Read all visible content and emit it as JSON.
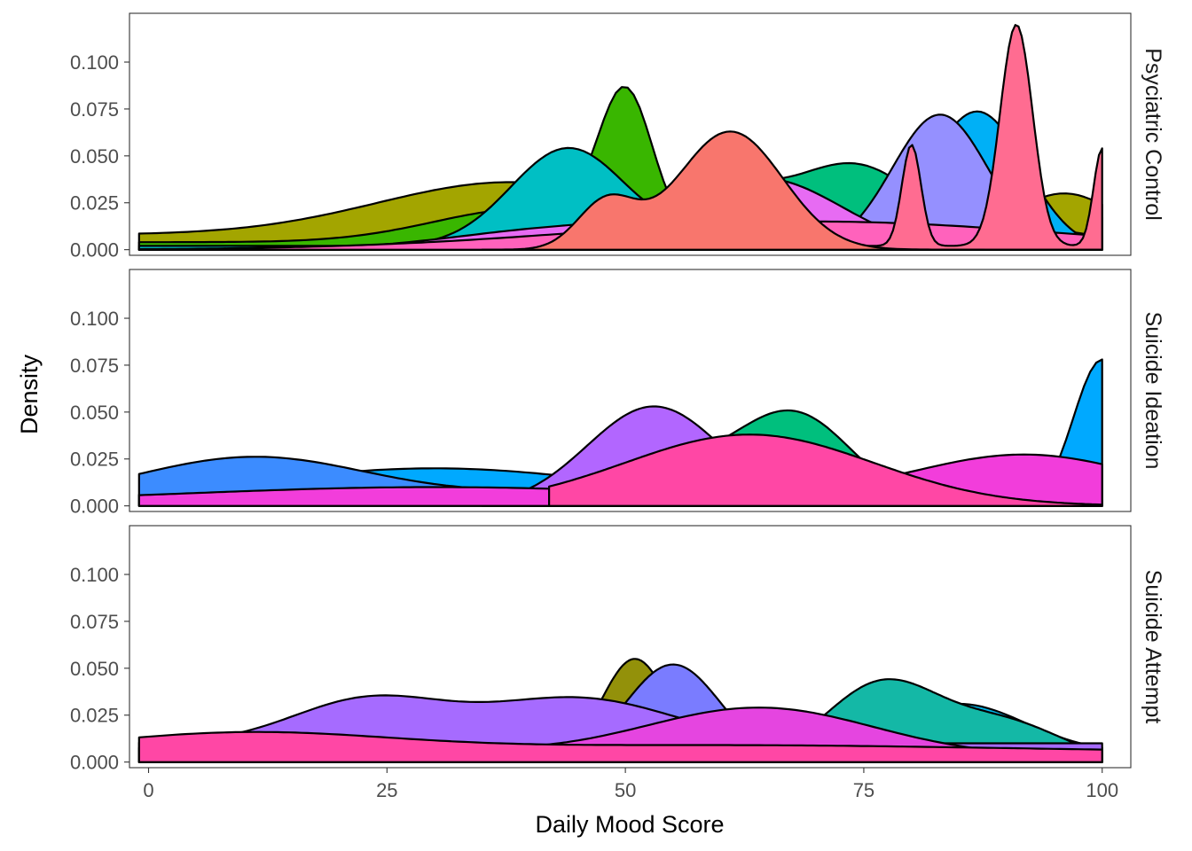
{
  "chart_data": {
    "type": "area",
    "xlabel": "Daily Mood Score",
    "ylabel": "Density",
    "xlim": [
      -2,
      103
    ],
    "ylim": [
      -0.003,
      0.126
    ],
    "x_ticks": [
      0,
      25,
      50,
      75,
      100
    ],
    "x_tick_labels": [
      "0",
      "25",
      "50",
      "75",
      "100"
    ],
    "y_ticks": [
      0,
      0.025,
      0.05,
      0.075,
      0.1
    ],
    "y_tick_labels": [
      "0.000",
      "0.025",
      "0.050",
      "0.075",
      "0.100"
    ],
    "grid": false,
    "legend": "none",
    "facets": [
      {
        "label": "Psyciatric Control",
        "series": [
          {
            "color": "#F8766D",
            "x_range": [
              0,
              100
            ],
            "peaks": [
              [
                62,
                0.03,
                12
              ],
              [
                95,
                0.028,
                5
              ]
            ],
            "base": 0.0
          },
          {
            "color": "#A3A500",
            "x_range": [
              -1,
              100
            ],
            "peaks": [
              [
                38,
                0.028,
                14
              ],
              [
                96,
                0.022,
                5
              ]
            ],
            "base": 0.008
          },
          {
            "color": "#39B600",
            "x_range": [
              -1,
              99
            ],
            "peaks": [
              [
                50,
                0.072,
                2.8
              ],
              [
                40,
                0.018,
                10
              ],
              [
                95,
                0.006,
                4
              ]
            ],
            "base": 0.004
          },
          {
            "color": "#00BF7D",
            "x_range": [
              -1,
              100
            ],
            "peaks": [
              [
                74,
                0.045,
                7
              ],
              [
                58,
                0.035,
                6
              ]
            ],
            "base": 0.0
          },
          {
            "color": "#00BFC4",
            "x_range": [
              -1,
              90
            ],
            "peaks": [
              [
                44,
                0.052,
                6
              ],
              [
                68,
                0.02,
                8
              ]
            ],
            "base": 0.002
          },
          {
            "color": "#00B0F6",
            "x_range": [
              40,
              100
            ],
            "peaks": [
              [
                87,
                0.072,
                5
              ],
              [
                66,
                0.015,
                10
              ]
            ],
            "base": 0.0
          },
          {
            "color": "#9590FF",
            "x_range": [
              60,
              98
            ],
            "peaks": [
              [
                83,
                0.072,
                5
              ]
            ],
            "base": 0.0
          },
          {
            "color": "#E76BF3",
            "x_range": [
              15,
              100
            ],
            "peaks": [
              [
                65,
                0.035,
                8
              ],
              [
                45,
                0.012,
                12
              ]
            ],
            "base": 0.0
          },
          {
            "color": "#FF62BC",
            "x_range": [
              -1,
              100
            ],
            "peaks": [
              [
                70,
                0.015,
                25
              ]
            ],
            "base": 0.0
          },
          {
            "color": "#FF6C91",
            "x_range": [
              46,
              100
            ],
            "peaks": [
              [
                91,
                0.118,
                1.7
              ],
              [
                80,
                0.054,
                1
              ],
              [
                100,
                0.052,
                0.9
              ],
              [
                50,
                0.012,
                4
              ]
            ],
            "base": 0.002
          },
          {
            "color": "#F8766D",
            "x_range": [
              35,
              100
            ],
            "peaks": [
              [
                61,
                0.063,
                5.5
              ],
              [
                48,
                0.025,
                3
              ]
            ],
            "base": 0.0
          }
        ]
      },
      {
        "label": "Suicide Ideation",
        "series": [
          {
            "color": "#00BF7D",
            "x_range": [
              40,
              100
            ],
            "peaks": [
              [
                68,
                0.045,
                6
              ],
              [
                55,
                0.02,
                8
              ]
            ],
            "base": 0.0
          },
          {
            "color": "#00A9FF",
            "x_range": [
              -1,
              100
            ],
            "peaks": [
              [
                100,
                0.078,
                3
              ],
              [
                30,
                0.02,
                20
              ]
            ],
            "base": 0.0
          },
          {
            "color": "#3C8CFF",
            "x_range": [
              -1,
              100
            ],
            "peaks": [
              [
                11,
                0.023,
                12
              ],
              [
                50,
                0.005,
                15
              ]
            ],
            "base": 0.003
          },
          {
            "color": "#B266FF",
            "x_range": [
              35,
              90
            ],
            "peaks": [
              [
                53,
                0.053,
                7
              ]
            ],
            "base": 0.0
          },
          {
            "color": "#F23DDB",
            "x_range": [
              -1,
              100
            ],
            "peaks": [
              [
                30,
                0.008,
                25
              ],
              [
                92,
                0.025,
                12
              ]
            ],
            "base": 0.002
          },
          {
            "color": "#FF47A5",
            "x_range": [
              42,
              100
            ],
            "peaks": [
              [
                63,
                0.038,
                13
              ]
            ],
            "base": 0.0
          }
        ]
      },
      {
        "label": "Suicide Attempt",
        "series": [
          {
            "color": "#93910A",
            "x_range": [
              40,
              70
            ],
            "peaks": [
              [
                51,
                0.055,
                3.5
              ]
            ],
            "base": 0.0
          },
          {
            "color": "#00B4E6",
            "x_range": [
              -1,
              100
            ],
            "peaks": [
              [
                30,
                0.022,
                15
              ],
              [
                85,
                0.026,
                7
              ]
            ],
            "base": 0.005
          },
          {
            "color": "#14B8A6",
            "x_range": [
              60,
              100
            ],
            "peaks": [
              [
                77,
                0.042,
                6
              ],
              [
                90,
                0.02,
                6
              ]
            ],
            "base": 0.0
          },
          {
            "color": "#7A7CFF",
            "x_range": [
              45,
              80
            ],
            "peaks": [
              [
                55,
                0.052,
                5
              ]
            ],
            "base": 0.0
          },
          {
            "color": "#A66BFF",
            "x_range": [
              -1,
              100
            ],
            "peaks": [
              [
                23,
                0.023,
                8
              ],
              [
                45,
                0.024,
                10
              ]
            ],
            "base": 0.01
          },
          {
            "color": "#E545E0",
            "x_range": [
              -1,
              100
            ],
            "peaks": [
              [
                64,
                0.026,
                12
              ],
              [
                15,
                0.008,
                15
              ]
            ],
            "base": 0.003
          },
          {
            "color": "#FF47A5",
            "x_range": [
              -1,
              100
            ],
            "peaks": [
              [
                10,
                0.01,
                15
              ],
              [
                60,
                0.004,
                30
              ]
            ],
            "base": 0.005
          }
        ]
      }
    ]
  }
}
